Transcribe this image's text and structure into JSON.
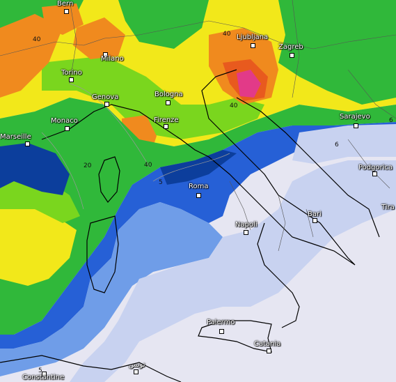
{
  "cities": {
    "bern": "Bern",
    "milano": "Milano",
    "torino": "Torino",
    "genova": "Genova",
    "bologna": "Bologna",
    "monaco": "Monaco",
    "marseille": "Marseille",
    "firenze": "Firenze",
    "ljubljana": "Ljubljana",
    "zagreb": "Zagreb",
    "sarajevo": "Sarajevo",
    "podgorica": "Podgorica",
    "tirana": "Tira",
    "roma": "Roma",
    "napoli": "Napoli",
    "bari": "Bari",
    "palermo": "Palermo",
    "catania": "Catania",
    "tunis": "تونس",
    "constantine": "Constantine"
  },
  "isolines": [
    "40",
    "40",
    "40",
    "20",
    "40",
    "5",
    "6",
    "6",
    "5"
  ],
  "colors": {
    "very_low": "#e6e6f2",
    "low": "#c8d2f0",
    "mid_low": "#6f9de8",
    "blue": "#2660d6",
    "dark_blue": "#0c3e9c",
    "green_dark": "#137a2a",
    "green": "#30b83a",
    "lime": "#7ad61e",
    "yellow": "#f2e81a",
    "orange": "#f08a1e",
    "red_orange": "#e85a1e",
    "magenta": "#e23a88"
  }
}
